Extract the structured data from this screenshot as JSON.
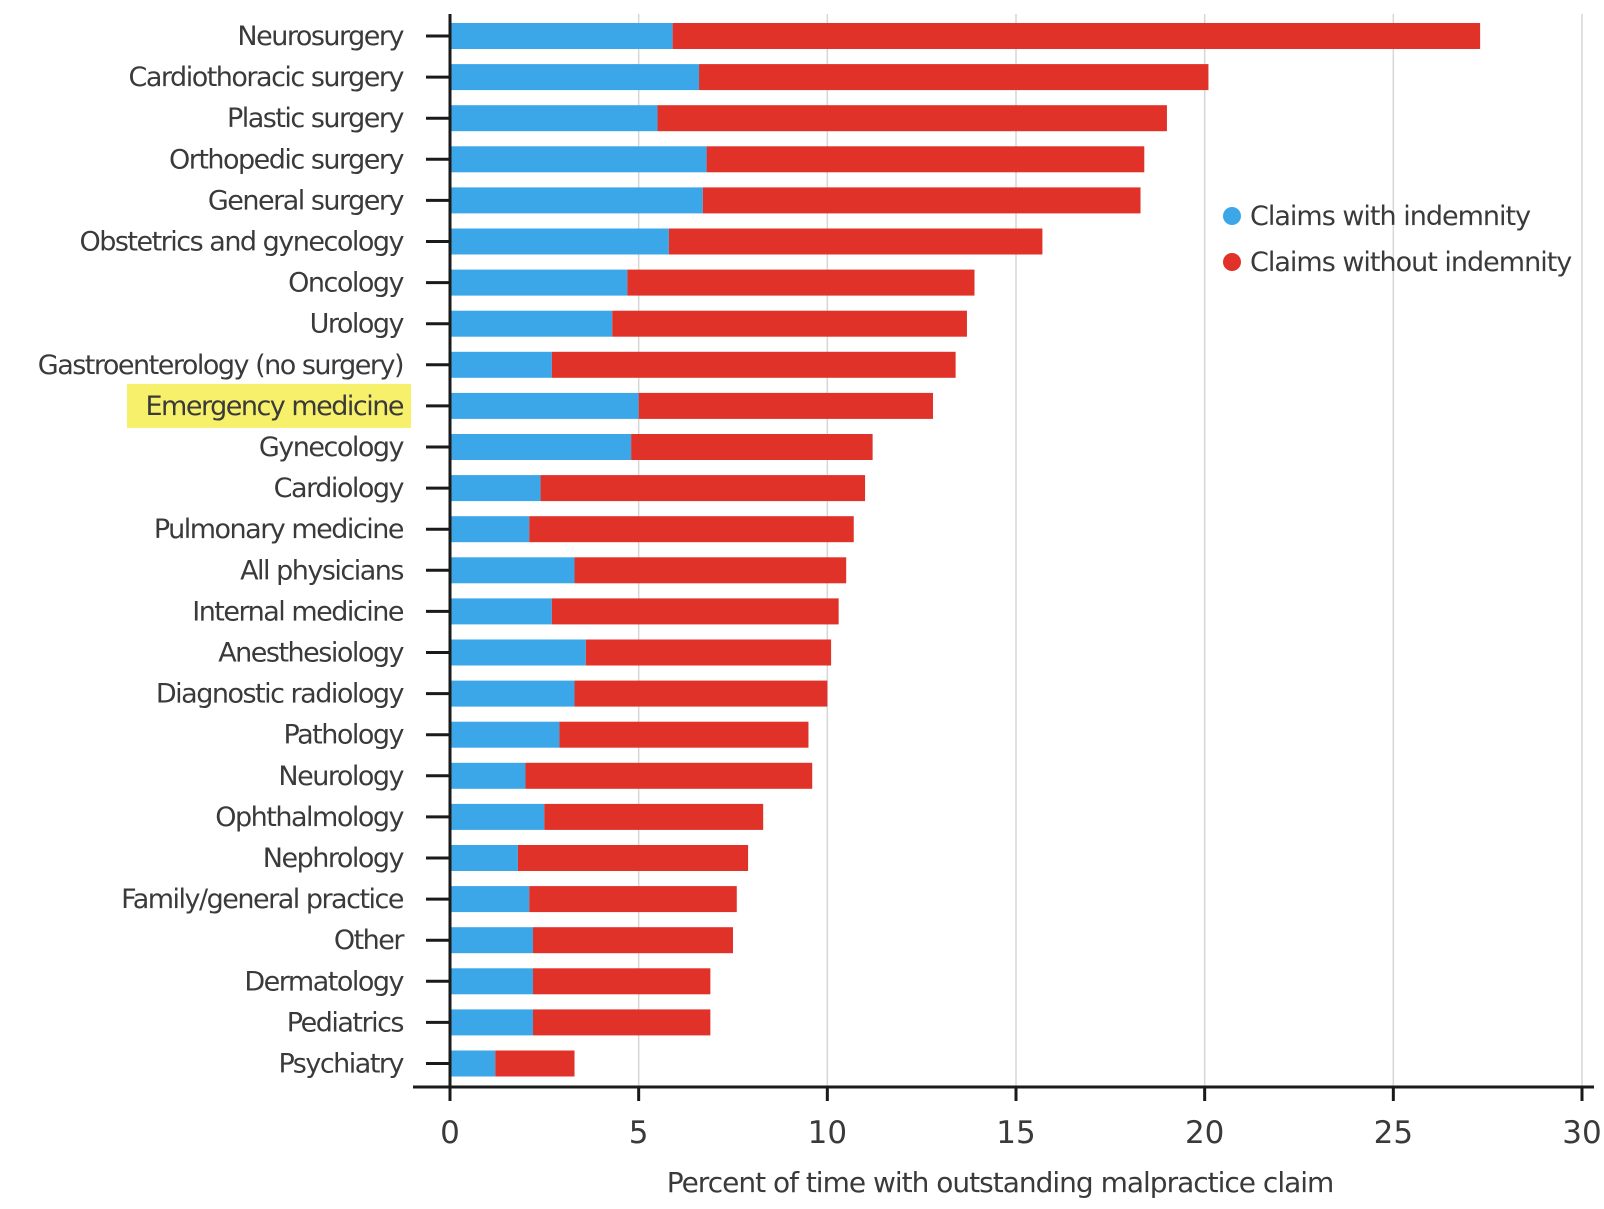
{
  "chart_data": {
    "type": "bar",
    "orientation": "horizontal",
    "stacked": true,
    "categories": [
      "Neurosurgery",
      "Cardiothoracic surgery",
      "Plastic surgery",
      "Orthopedic surgery",
      "General surgery",
      "Obstetrics and gynecology",
      "Oncology",
      "Urology",
      "Gastroenterology (no surgery)",
      "Emergency medicine",
      "Gynecology",
      "Cardiology",
      "Pulmonary medicine",
      "All physicians",
      "Internal medicine",
      "Anesthesiology",
      "Diagnostic radiology",
      "Pathology",
      "Neurology",
      "Ophthalmology",
      "Nephrology",
      "Family/general practice",
      "Other",
      "Dermatology",
      "Pediatrics",
      "Psychiatry"
    ],
    "series": [
      {
        "name": "Claims with indemnity",
        "color": "#3ba7e8",
        "values": [
          5.9,
          6.6,
          5.5,
          6.8,
          6.7,
          5.8,
          4.7,
          4.3,
          2.7,
          5.0,
          4.8,
          2.4,
          2.1,
          3.3,
          2.7,
          3.6,
          3.3,
          2.9,
          2.0,
          2.5,
          1.8,
          2.1,
          2.2,
          2.2,
          2.2,
          1.2
        ]
      },
      {
        "name": "Claims without indemnity",
        "color": "#e03228",
        "values": [
          21.4,
          13.5,
          13.5,
          11.6,
          11.6,
          9.9,
          9.2,
          9.4,
          10.7,
          7.8,
          6.4,
          8.6,
          8.6,
          7.2,
          7.6,
          6.5,
          6.7,
          6.6,
          7.6,
          5.8,
          6.1,
          5.5,
          5.3,
          4.7,
          4.7,
          2.1
        ]
      }
    ],
    "highlight": {
      "category": "Emergency medicine",
      "color": "#f6f06a"
    },
    "xlim": [
      0,
      30
    ],
    "x_ticks": [
      "0",
      "5",
      "10",
      "15",
      "20",
      "25",
      "30"
    ],
    "xlabel": "Percent of time with outstanding malpractice claim",
    "ylabel": "",
    "title": "",
    "grid": "vertical",
    "legend_position": "top-right"
  }
}
